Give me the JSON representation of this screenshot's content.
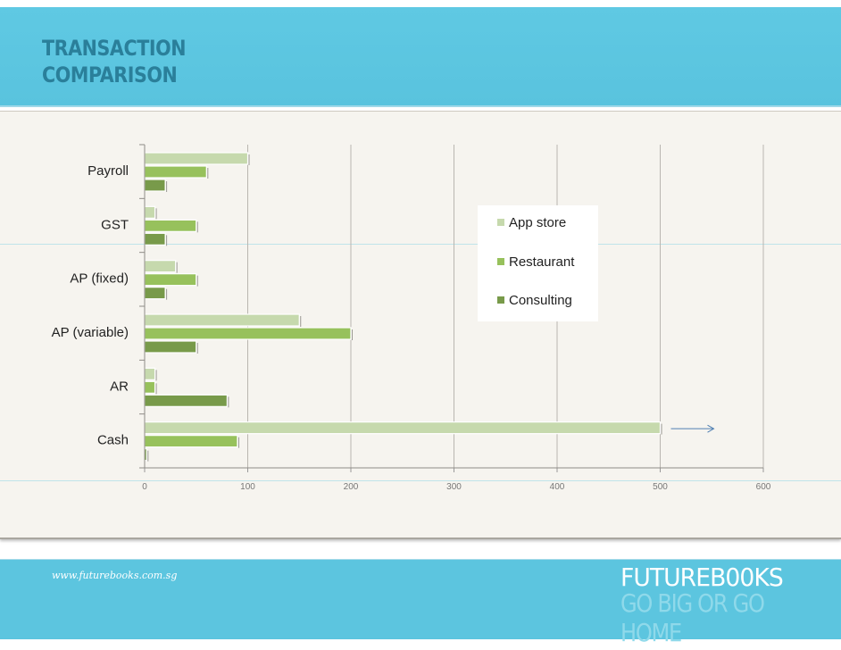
{
  "header": {
    "title_line_1": "TRANSACTION",
    "title_line_2": "COMPARISON"
  },
  "footer": {
    "url": "www.futurebooks.com.sg",
    "brand_name": "FUTUREB00KS",
    "tagline": "GO BIG OR GO HOME"
  },
  "colors": {
    "header_band": "#5fc9e3",
    "title": "#2a7f9a",
    "panel": "#f6f4ef",
    "app_store": "#c6d9ad",
    "restaurant": "#97c15c",
    "consulting": "#789a4a",
    "arrow": "#4f7fb2"
  },
  "chart_data": {
    "type": "bar",
    "orientation": "horizontal",
    "categories": [
      "Payroll",
      "GST",
      "AP (fixed)",
      "AP (variable)",
      "AR",
      "Cash"
    ],
    "series": [
      {
        "name": "App store",
        "values": [
          100,
          10,
          30,
          150,
          10,
          500
        ]
      },
      {
        "name": "Restaurant",
        "values": [
          60,
          50,
          50,
          200,
          10,
          90
        ]
      },
      {
        "name": "Consulting",
        "values": [
          20,
          20,
          20,
          50,
          80,
          2
        ]
      }
    ],
    "xlim": [
      0,
      600
    ],
    "xticks": [
      0,
      100,
      200,
      300,
      400,
      500,
      600
    ],
    "grid": true,
    "legend_position": "top-right",
    "annotation": "arrow pointing right beyond the Cash App store bar"
  }
}
